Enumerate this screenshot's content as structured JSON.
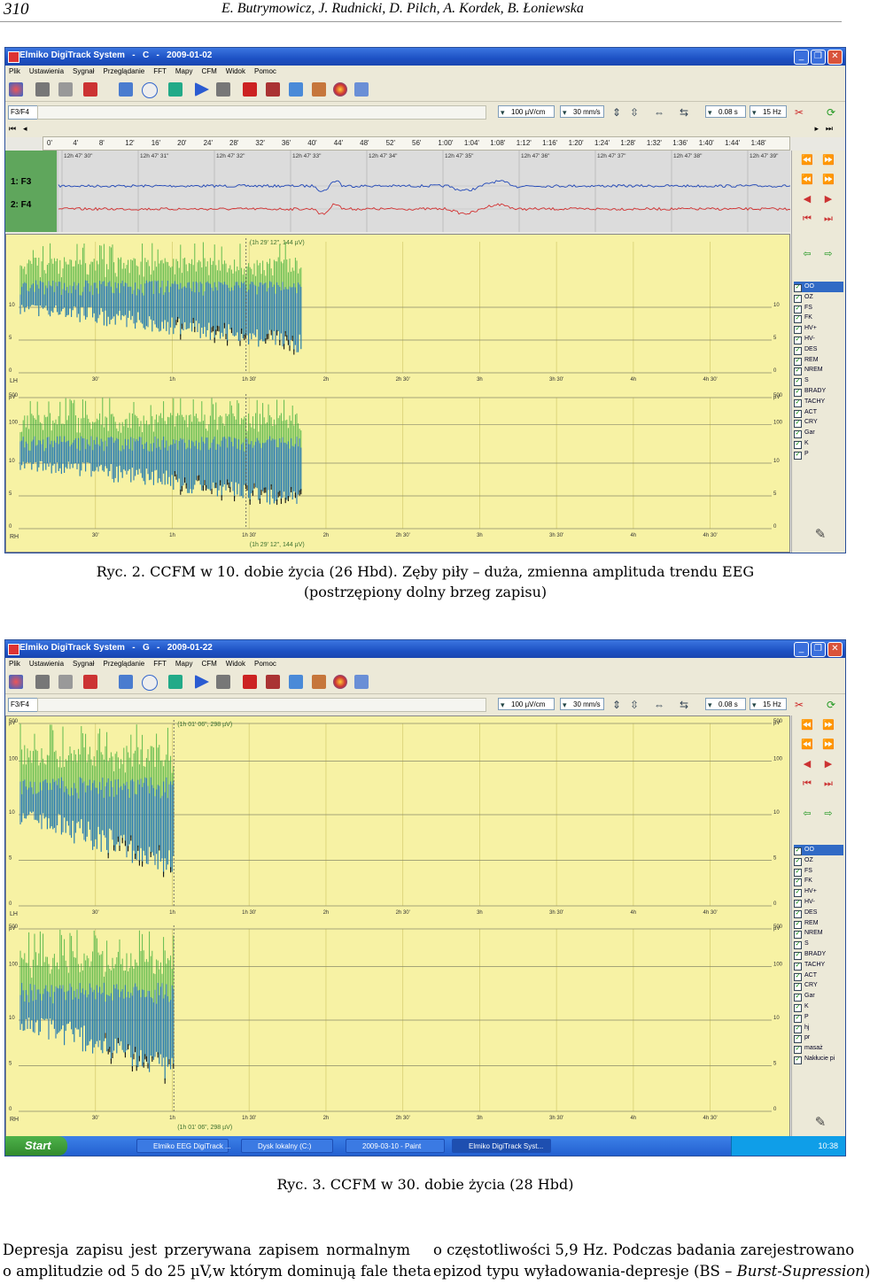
{
  "header": {
    "page_number": "310",
    "authors": "E. Butrymowicz, J. Rudnicki, D. Pilch, A. Kordek, B. Łoniewska"
  },
  "figures": [
    {
      "window_title": "Elmiko DigiTrack System   -   C   -   2009-01-02",
      "menu": [
        "Plik",
        "Ustawienia",
        "Sygnał",
        "Przeglądanie",
        "FFT",
        "Mapy",
        "CFM",
        "Widok",
        "Pomoc"
      ],
      "channel": "F3/F4",
      "sensitivity": "100 µV/cm",
      "speed": "30 mm/s",
      "time_const": "0.08 s",
      "filter": "15 Hz",
      "ruler_ticks": [
        "0'",
        "4'",
        "8'",
        "12'",
        "16'",
        "20'",
        "24'",
        "28'",
        "32'",
        "36'",
        "40'",
        "44'",
        "48'",
        "52'",
        "56'",
        "1:00'",
        "1:04'",
        "1:08'",
        "1:12'",
        "1:16'",
        "1:20'",
        "1:24'",
        "1:28'",
        "1:32'",
        "1:36'",
        "1:40'",
        "1:44'",
        "1:48'"
      ],
      "eeg_channels": [
        "1: F3",
        "2: F4"
      ],
      "eeg_times": [
        "12h 47' 30\"",
        "12h 47' 31\"",
        "12h 47' 32\"",
        "12h 47' 33\"",
        "12h 47' 34\"",
        "12h 47' 35\"",
        "12h 47' 36\"",
        "12h 47' 37\"",
        "12h 47' 38\"",
        "12h 47' 39\""
      ],
      "cursor_readout_top": "(1h 29' 12\", 144 µV)",
      "cursor_readout_bottom": "(1h 29' 12\", 144 µV)",
      "y_ticks": [
        "10",
        "5",
        "0"
      ],
      "y_ticks_bottom": [
        "µV",
        "500",
        "100",
        "10",
        "5",
        "0"
      ],
      "x_ticks": [
        "30'",
        "1h",
        "1h 30'",
        "2h",
        "2h 30'",
        "3h",
        "3h 30'",
        "4h",
        "4h 30'"
      ],
      "hemi_top": "LH",
      "hemi_bottom": "RH",
      "markers": [
        "OO",
        "OZ",
        "FS",
        "FK",
        "HV+",
        "HV-",
        "DES",
        "REM",
        "NREM",
        "S",
        "BRADY",
        "TACHY",
        "ACT",
        "CRY",
        "Gar",
        "K",
        "P"
      ],
      "caption_line1": "Ryc. 2. CCFM w 10. dobie życia (26 Hbd). Zęby piły – duża, zmienna amplituda trendu EEG",
      "caption_line2": "(postrzępiony dolny brzeg zapisu)"
    },
    {
      "window_title": "Elmiko DigiTrack System   -   G   -   2009-01-22",
      "menu": [
        "Plik",
        "Ustawienia",
        "Sygnał",
        "Przeglądanie",
        "FFT",
        "Mapy",
        "CFM",
        "Widok",
        "Pomoc"
      ],
      "channel": "F3/F4",
      "sensitivity": "100 µV/cm",
      "speed": "30 mm/s",
      "time_const": "0.08 s",
      "filter": "15 Hz",
      "cursor_readout_top": "(1h 01' 06\", 298 µV)",
      "cursor_readout_bottom": "(1h 01' 06\", 298 µV)",
      "y_ticks_top": [
        "µV",
        "500",
        "100",
        "10",
        "5",
        "0"
      ],
      "y_ticks_bottom": [
        "µV",
        "500",
        "100",
        "10",
        "5",
        "0"
      ],
      "x_ticks": [
        "30'",
        "1h",
        "1h 30'",
        "2h",
        "2h 30'",
        "3h",
        "3h 30'",
        "4h",
        "4h 30'"
      ],
      "hemi_top": "LH",
      "hemi_bottom": "RH",
      "markers": [
        "OO",
        "OZ",
        "FS",
        "FK",
        "HV+",
        "HV-",
        "DES",
        "REM",
        "NREM",
        "S",
        "BRADY",
        "TACHY",
        "ACT",
        "CRY",
        "Gar",
        "K",
        "P",
        "hj",
        "pr",
        "masaż",
        "Nakłucie pi"
      ],
      "taskbar": {
        "start": "Start",
        "tasks": [
          "Elmiko EEG DigiTrack ...",
          "Dysk lokalny (C:)",
          "2009-03-10 - Paint",
          "Elmiko DigiTrack Syst..."
        ],
        "clock": "10:38"
      },
      "caption": "Ryc. 3. CCFM w 30. dobie życia (28 Hbd)"
    }
  ],
  "text": {
    "left_lines": [
      "Depresja zapisu jest przerywana zapisem normalnym",
      "o amplitudzie od 5 do 25 µV,w którym dominują fale theta"
    ],
    "right_line1": "o częstotliwości 5,9 Hz. Podczas badania zarejestrowano",
    "right_line2_prefix": "epizod typu wyładowania-depresje (BS – ",
    "right_line2_italic": "Burst-Supression",
    "right_line2_suffix": ")"
  },
  "colors": {
    "cfm_bg": "#f7f2a4",
    "trace_blue": "#1f6fc9",
    "trace_green": "#3cae3a",
    "eeg_blue": "#2248b8",
    "eeg_red": "#d23030"
  }
}
